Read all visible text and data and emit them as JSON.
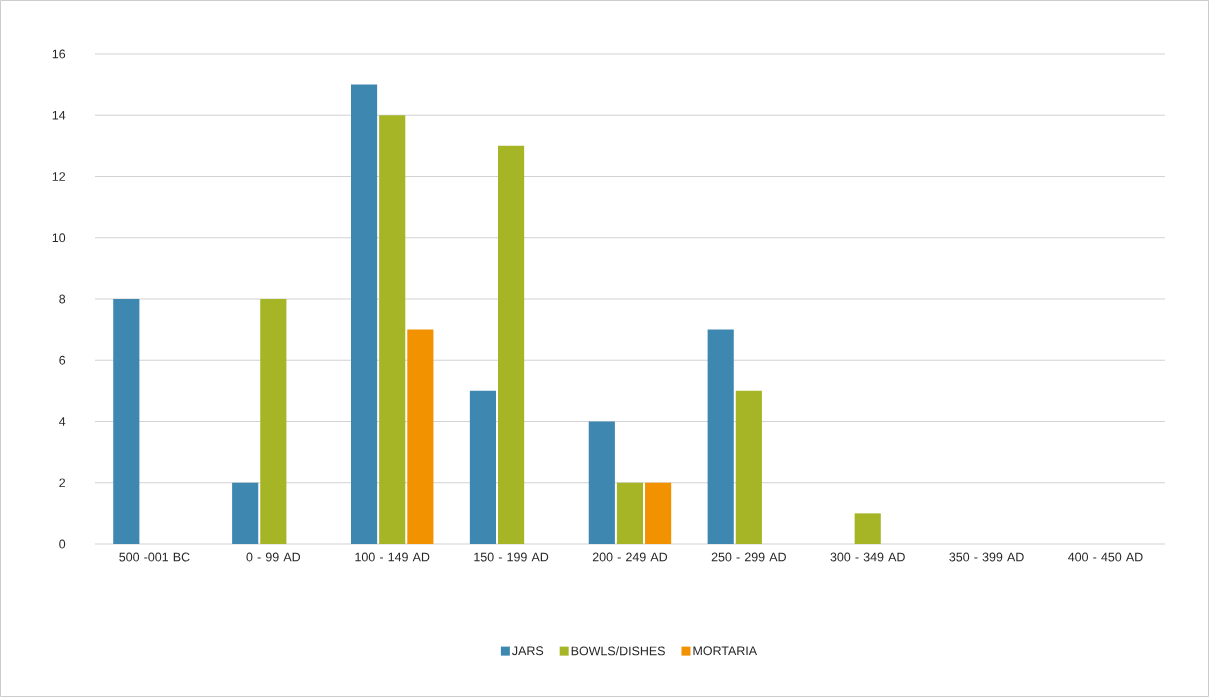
{
  "chart_data": {
    "type": "bar",
    "categories": [
      "500 -001 BC",
      "0 - 99 AD",
      "100 - 149 AD",
      "150 - 199 AD",
      "200 - 249 AD",
      "250 - 299 AD",
      "300 - 349 AD",
      "350 - 399 AD",
      "400 - 450 AD"
    ],
    "series": [
      {
        "name": "JARS",
        "color": "#3d87b1",
        "values": [
          8,
          2,
          15,
          5,
          4,
          7,
          null,
          null,
          null
        ]
      },
      {
        "name": "BOWLS/DISHES",
        "color": "#a5b526",
        "values": [
          null,
          8,
          14,
          13,
          2,
          5,
          1,
          null,
          null
        ]
      },
      {
        "name": "MORTARIA",
        "color": "#f39200",
        "values": [
          null,
          null,
          7,
          null,
          2,
          null,
          null,
          null,
          null
        ]
      }
    ],
    "ylim": [
      0,
      16
    ],
    "yticks": [
      0,
      2,
      4,
      6,
      8,
      10,
      12,
      14,
      16
    ],
    "grid": "y",
    "legend": "bottom"
  }
}
